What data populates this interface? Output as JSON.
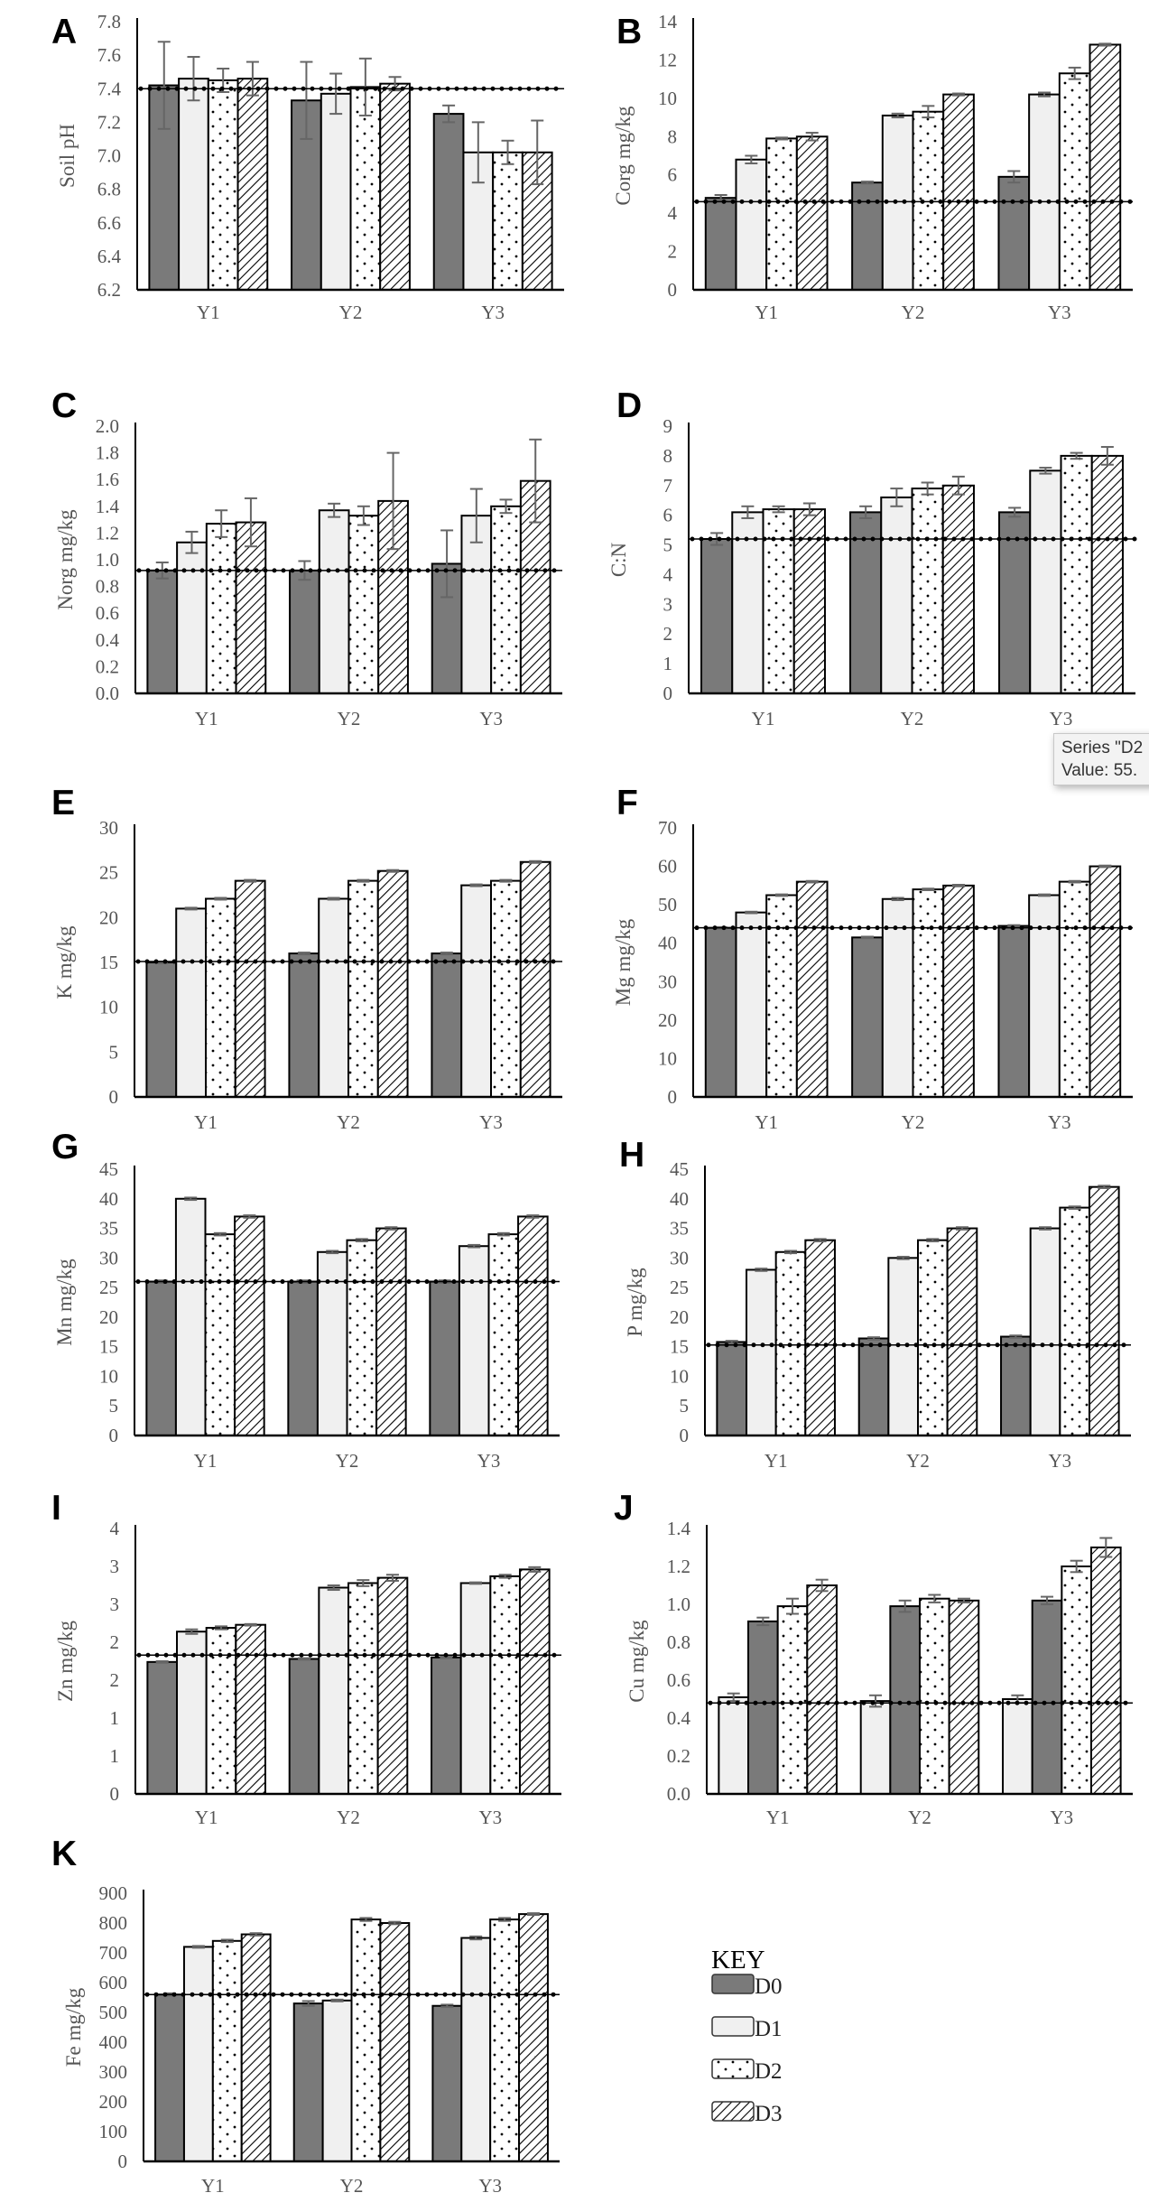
{
  "colors": {
    "D0": "#7a7a7a",
    "D1": "#f0f0f0",
    "D2_dots": "#000000",
    "D3_hatch": "#000000",
    "error_bar": "#666666",
    "reference": "#000000"
  },
  "legend": {
    "title": "KEY",
    "items": [
      "D0",
      "D1",
      "D2",
      "D3"
    ]
  },
  "tooltip": {
    "line1": "Series \"D2",
    "line2": "Value: 55."
  },
  "chart_data": [
    {
      "panel": "A",
      "type": "bar",
      "ylabel": "Soil pH",
      "categories": [
        "Y1",
        "Y2",
        "Y3"
      ],
      "ylim": [
        6.2,
        7.8
      ],
      "yticks": [
        6.2,
        6.4,
        6.6,
        6.8,
        7.0,
        7.2,
        7.4,
        7.6,
        7.8
      ],
      "ytick_labels": [
        "6.2",
        "6.4",
        "6.6",
        "6.8",
        "7.0",
        "7.2",
        "7.4",
        "7.6",
        "7.8"
      ],
      "reference": 7.4,
      "series": [
        {
          "name": "D0",
          "values": [
            7.42,
            7.33,
            7.25
          ],
          "errors": [
            0.26,
            0.23,
            0.05
          ]
        },
        {
          "name": "D1",
          "values": [
            7.46,
            7.37,
            7.02
          ],
          "errors": [
            0.13,
            0.12,
            0.18
          ]
        },
        {
          "name": "D2",
          "values": [
            7.45,
            7.41,
            7.02
          ],
          "errors": [
            0.07,
            0.17,
            0.07
          ]
        },
        {
          "name": "D3",
          "values": [
            7.46,
            7.43,
            7.02
          ],
          "errors": [
            0.1,
            0.04,
            0.19
          ]
        }
      ]
    },
    {
      "panel": "B",
      "type": "bar",
      "ylabel": "Corg mg/kg",
      "categories": [
        "Y1",
        "Y2",
        "Y3"
      ],
      "ylim": [
        0,
        14
      ],
      "yticks": [
        0,
        2,
        4,
        6,
        8,
        10,
        12,
        14
      ],
      "ytick_labels": [
        "0",
        "2",
        "4",
        "6",
        "8",
        "10",
        "12",
        "14"
      ],
      "reference": 4.6,
      "series": [
        {
          "name": "D0",
          "values": [
            4.8,
            5.6,
            5.9
          ],
          "errors": [
            0.15,
            0.05,
            0.3
          ]
        },
        {
          "name": "D1",
          "values": [
            6.8,
            9.1,
            10.2
          ],
          "errors": [
            0.2,
            0.1,
            0.1
          ]
        },
        {
          "name": "D2",
          "values": [
            7.9,
            9.3,
            11.3
          ],
          "errors": [
            0.05,
            0.3,
            0.3
          ]
        },
        {
          "name": "D3",
          "values": [
            8.0,
            10.2,
            12.8
          ],
          "errors": [
            0.2,
            0.05,
            0.05
          ]
        }
      ]
    },
    {
      "panel": "C",
      "type": "bar",
      "ylabel": "Norg mg/kg",
      "categories": [
        "Y1",
        "Y2",
        "Y3"
      ],
      "ylim": [
        0,
        2
      ],
      "yticks": [
        0,
        0.2,
        0.4,
        0.6,
        0.8,
        1.0,
        1.2,
        1.4,
        1.6,
        1.8,
        2.0
      ],
      "ytick_labels": [
        "0.0",
        "0.2",
        "0.4",
        "0.6",
        "0.8",
        "1.0",
        "1.2",
        "1.4",
        "1.6",
        "1.8",
        "2.0"
      ],
      "reference": 0.92,
      "series": [
        {
          "name": "D0",
          "values": [
            0.92,
            0.92,
            0.97
          ],
          "errors": [
            0.06,
            0.07,
            0.25
          ]
        },
        {
          "name": "D1",
          "values": [
            1.13,
            1.37,
            1.33
          ],
          "errors": [
            0.08,
            0.05,
            0.2
          ]
        },
        {
          "name": "D2",
          "values": [
            1.27,
            1.33,
            1.4
          ],
          "errors": [
            0.1,
            0.07,
            0.05
          ]
        },
        {
          "name": "D3",
          "values": [
            1.28,
            1.44,
            1.59
          ],
          "errors": [
            0.18,
            0.36,
            0.31
          ]
        }
      ]
    },
    {
      "panel": "D",
      "type": "bar",
      "ylabel": "C:N",
      "categories": [
        "Y1",
        "Y2",
        "Y3"
      ],
      "ylim": [
        0,
        9
      ],
      "yticks": [
        0,
        1,
        2,
        3,
        4,
        5,
        6,
        7,
        8,
        9
      ],
      "ytick_labels": [
        "0",
        "1",
        "2",
        "3",
        "4",
        "5",
        "6",
        "7",
        "8",
        "9"
      ],
      "reference": 5.2,
      "series": [
        {
          "name": "D0",
          "values": [
            5.2,
            6.1,
            6.1
          ],
          "errors": [
            0.2,
            0.2,
            0.15
          ]
        },
        {
          "name": "D1",
          "values": [
            6.1,
            6.6,
            7.5
          ],
          "errors": [
            0.2,
            0.3,
            0.1
          ]
        },
        {
          "name": "D2",
          "values": [
            6.2,
            6.9,
            8.0
          ],
          "errors": [
            0.1,
            0.2,
            0.1
          ]
        },
        {
          "name": "D3",
          "values": [
            6.2,
            7.0,
            8.0
          ],
          "errors": [
            0.2,
            0.3,
            0.3
          ]
        }
      ]
    },
    {
      "panel": "E",
      "type": "bar",
      "ylabel": "K mg/kg",
      "categories": [
        "Y1",
        "Y2",
        "Y3"
      ],
      "ylim": [
        0,
        30
      ],
      "yticks": [
        0,
        5,
        10,
        15,
        20,
        25,
        30
      ],
      "ytick_labels": [
        "0",
        "5",
        "10",
        "15",
        "20",
        "25",
        "30"
      ],
      "reference": 15.1,
      "series": [
        {
          "name": "D0",
          "values": [
            15.0,
            16.0,
            16.0
          ],
          "errors": [
            0.1,
            0.1,
            0.1
          ]
        },
        {
          "name": "D1",
          "values": [
            21.0,
            22.1,
            23.6
          ],
          "errors": [
            0.1,
            0.1,
            0.1
          ]
        },
        {
          "name": "D2",
          "values": [
            22.1,
            24.1,
            24.1
          ],
          "errors": [
            0.1,
            0.1,
            0.1
          ]
        },
        {
          "name": "D3",
          "values": [
            24.1,
            25.2,
            26.2
          ],
          "errors": [
            0.1,
            0.1,
            0.1
          ]
        }
      ]
    },
    {
      "panel": "F",
      "type": "bar",
      "ylabel": "Mg mg/kg",
      "categories": [
        "Y1",
        "Y2",
        "Y3"
      ],
      "ylim": [
        0,
        70
      ],
      "yticks": [
        0,
        10,
        20,
        30,
        40,
        50,
        60,
        70
      ],
      "ytick_labels": [
        "0",
        "10",
        "20",
        "30",
        "40",
        "50",
        "60",
        "70"
      ],
      "reference": 44,
      "series": [
        {
          "name": "D0",
          "values": [
            44,
            41.5,
            44.5
          ],
          "errors": [
            0.2,
            0.2,
            0.2
          ]
        },
        {
          "name": "D1",
          "values": [
            48,
            51.5,
            52.5
          ],
          "errors": [
            0.2,
            0.3,
            0.2
          ]
        },
        {
          "name": "D2",
          "values": [
            52.5,
            54,
            56
          ],
          "errors": [
            0.2,
            0.2,
            0.2
          ]
        },
        {
          "name": "D3",
          "values": [
            56,
            55,
            60
          ],
          "errors": [
            0.2,
            0.2,
            0.2
          ]
        }
      ]
    },
    {
      "panel": "G",
      "type": "bar",
      "ylabel": "Mn mg/kg",
      "categories": [
        "Y1",
        "Y2",
        "Y3"
      ],
      "ylim": [
        0,
        45
      ],
      "yticks": [
        0,
        5,
        10,
        15,
        20,
        25,
        30,
        35,
        40,
        45
      ],
      "ytick_labels": [
        "0",
        "5",
        "10",
        "15",
        "20",
        "25",
        "30",
        "35",
        "40",
        "45"
      ],
      "reference": 26,
      "series": [
        {
          "name": "D0",
          "values": [
            26,
            26,
            26
          ],
          "errors": [
            0.2,
            0.2,
            0.2
          ]
        },
        {
          "name": "D1",
          "values": [
            40,
            31,
            32
          ],
          "errors": [
            0.2,
            0.2,
            0.2
          ]
        },
        {
          "name": "D2",
          "values": [
            34,
            33,
            34
          ],
          "errors": [
            0.2,
            0.2,
            0.2
          ]
        },
        {
          "name": "D3",
          "values": [
            37,
            35,
            37
          ],
          "errors": [
            0.2,
            0.2,
            0.2
          ]
        }
      ]
    },
    {
      "panel": "H",
      "type": "bar",
      "ylabel": "P mg/kg",
      "categories": [
        "Y1",
        "Y2",
        "Y3"
      ],
      "ylim": [
        0,
        45
      ],
      "yticks": [
        0,
        5,
        10,
        15,
        20,
        25,
        30,
        35,
        40,
        45
      ],
      "ytick_labels": [
        "0",
        "5",
        "10",
        "15",
        "20",
        "25",
        "30",
        "35",
        "40",
        "45"
      ],
      "reference": 15.3,
      "series": [
        {
          "name": "D0",
          "values": [
            15.8,
            16.4,
            16.7
          ],
          "errors": [
            0.2,
            0.2,
            0.2
          ]
        },
        {
          "name": "D1",
          "values": [
            28,
            30,
            35
          ],
          "errors": [
            0.2,
            0.2,
            0.2
          ]
        },
        {
          "name": "D2",
          "values": [
            31,
            33,
            38.5
          ],
          "errors": [
            0.2,
            0.2,
            0.2
          ]
        },
        {
          "name": "D3",
          "values": [
            33,
            35,
            42
          ],
          "errors": [
            0.2,
            0.2,
            0.2
          ]
        }
      ]
    },
    {
      "panel": "I",
      "type": "bar",
      "ylabel": "Zn mg/kg",
      "categories": [
        "Y1",
        "Y2",
        "Y3"
      ],
      "ylim": [
        0,
        3.5
      ],
      "yticks": [
        0,
        0.5,
        1,
        1.5,
        2,
        2.5,
        3,
        3.5
      ],
      "ytick_labels": [
        "0",
        "1",
        "1",
        "2",
        "2",
        "3",
        "3",
        "4"
      ],
      "reference": 1.83,
      "series": [
        {
          "name": "D0",
          "values": [
            1.74,
            1.78,
            1.8
          ],
          "errors": [
            0.01,
            0.01,
            0.01
          ]
        },
        {
          "name": "D1",
          "values": [
            2.14,
            2.72,
            2.78
          ],
          "errors": [
            0.03,
            0.03,
            0.01
          ]
        },
        {
          "name": "D2",
          "values": [
            2.19,
            2.78,
            2.87
          ],
          "errors": [
            0.02,
            0.04,
            0.02
          ]
        },
        {
          "name": "D3",
          "values": [
            2.23,
            2.85,
            2.96
          ],
          "errors": [
            0.01,
            0.04,
            0.03
          ]
        }
      ]
    },
    {
      "panel": "J",
      "type": "bar",
      "ylabel": "Cu mg/kg",
      "categories": [
        "Y1",
        "Y2",
        "Y3"
      ],
      "ylim": [
        0,
        1.4
      ],
      "yticks": [
        0,
        0.2,
        0.4,
        0.6,
        0.8,
        1.0,
        1.2,
        1.4
      ],
      "ytick_labels": [
        "0.0",
        "0.2",
        "0.4",
        "0.6",
        "0.8",
        "1.0",
        "1.2",
        "1.4"
      ],
      "reference": 0.48,
      "series": [
        {
          "name": "D0",
          "values": [
            0.51,
            0.49,
            0.5
          ],
          "errors": [
            0.02,
            0.03,
            0.02
          ]
        },
        {
          "name": "D1",
          "values": [
            0.91,
            0.99,
            1.02
          ],
          "errors": [
            0.02,
            0.03,
            0.02
          ]
        },
        {
          "name": "D2",
          "values": [
            0.99,
            1.03,
            1.2
          ],
          "errors": [
            0.04,
            0.02,
            0.03
          ]
        },
        {
          "name": "D3",
          "values": [
            1.1,
            1.02,
            1.3
          ],
          "errors": [
            0.03,
            0.01,
            0.05
          ]
        }
      ]
    },
    {
      "panel": "K",
      "type": "bar",
      "ylabel": "Fe mg/kg",
      "categories": [
        "Y1",
        "Y2",
        "Y3"
      ],
      "ylim": [
        0,
        900
      ],
      "yticks": [
        0,
        100,
        200,
        300,
        400,
        500,
        600,
        700,
        800,
        900
      ],
      "ytick_labels": [
        "0",
        "100",
        "200",
        "300",
        "400",
        "500",
        "600",
        "700",
        "800",
        "900"
      ],
      "reference": 560,
      "series": [
        {
          "name": "D0",
          "values": [
            560,
            530,
            522
          ],
          "errors": [
            4,
            8,
            4
          ]
        },
        {
          "name": "D1",
          "values": [
            720,
            540,
            750
          ],
          "errors": [
            3,
            3,
            5
          ]
        },
        {
          "name": "D2",
          "values": [
            740,
            812,
            812
          ],
          "errors": [
            4,
            5,
            5
          ]
        },
        {
          "name": "D3",
          "values": [
            762,
            800,
            830
          ],
          "errors": [
            4,
            4,
            3
          ]
        }
      ]
    }
  ]
}
